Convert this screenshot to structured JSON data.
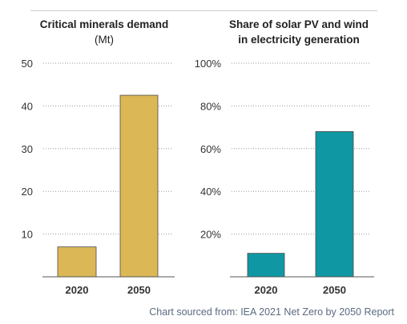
{
  "chart_data": [
    {
      "type": "bar",
      "title": "Critical minerals demand",
      "subtitle": "(Mt)",
      "categories": [
        "2020",
        "2050"
      ],
      "values": [
        7,
        42.5
      ],
      "ylim": [
        0,
        50
      ],
      "yticks": [
        10,
        20,
        30,
        40,
        50
      ],
      "ytick_labels": [
        "10",
        "20",
        "30",
        "40",
        "50"
      ],
      "grid": "dotted horizontal",
      "color": "#dcb755"
    },
    {
      "type": "bar",
      "title": "Share of solar PV and wind",
      "title_line2": "in electricity generation",
      "categories": [
        "2020",
        "2050"
      ],
      "values": [
        11,
        68
      ],
      "ylim": [
        0,
        100
      ],
      "yticks": [
        20,
        40,
        60,
        80,
        100
      ],
      "ytick_labels": [
        "20%",
        "40%",
        "60%",
        "80%",
        "100%"
      ],
      "grid": "dotted horizontal",
      "color": "#0f98a3"
    }
  ],
  "source": "Chart sourced from: IEA 2021 Net Zero by 2050 Report"
}
